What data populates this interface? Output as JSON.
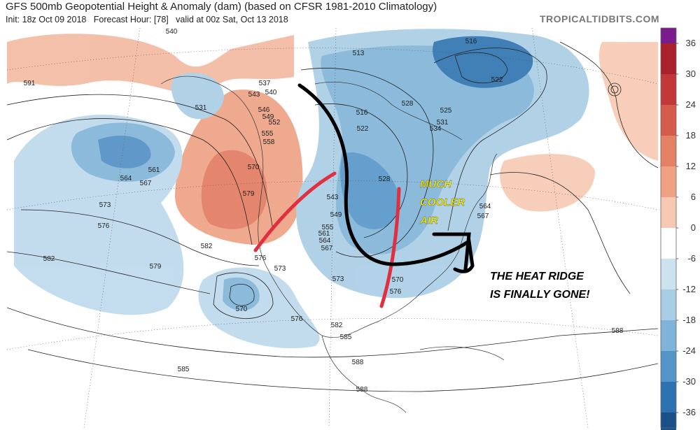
{
  "header": {
    "title": "GFS 500mb Geopotential Height & Anomaly (dam) (based on CFSR 1981-2010 Climatology)",
    "subtitle": "Init: 18z Oct 09 2018   Forecast Hour: [78]   valid at 00z Sat, Oct 13 2018",
    "site": "TROPICALTIDBITS.COM"
  },
  "colorbar": {
    "ticks": [
      36,
      30,
      24,
      18,
      12,
      6,
      0,
      -6,
      -12,
      -18,
      -24,
      -30,
      -36
    ],
    "colors": [
      "#7a1c8c",
      "#a8212d",
      "#c2373a",
      "#d45a4c",
      "#e48165",
      "#eea283",
      "#f7c9b3",
      "#ffffff",
      "#cde2ef",
      "#a9cde5",
      "#7fb3d8",
      "#5495c8",
      "#2d72b0",
      "#1a4f8a",
      "#0f2f5c"
    ]
  },
  "contour_labels": [
    "540",
    "591",
    "537",
    "543",
    "540",
    "546",
    "549",
    "552",
    "555",
    "558",
    "531",
    "570",
    "579",
    "561",
    "564",
    "567",
    "573",
    "576",
    "582",
    "582",
    "579",
    "576",
    "573",
    "573",
    "570",
    "576",
    "582",
    "585",
    "585",
    "588",
    "588",
    "513",
    "516",
    "522",
    "525",
    "528",
    "528",
    "531",
    "534",
    "516",
    "522",
    "543",
    "549",
    "555",
    "561",
    "564",
    "567",
    "570",
    "576",
    "564",
    "567",
    "588"
  ],
  "annotations": {
    "cooler": [
      "MUCH",
      "COOLER",
      "AIR"
    ],
    "ridge": [
      "THE HEAT RIDGE",
      "IS FINALLY GONE!"
    ]
  }
}
